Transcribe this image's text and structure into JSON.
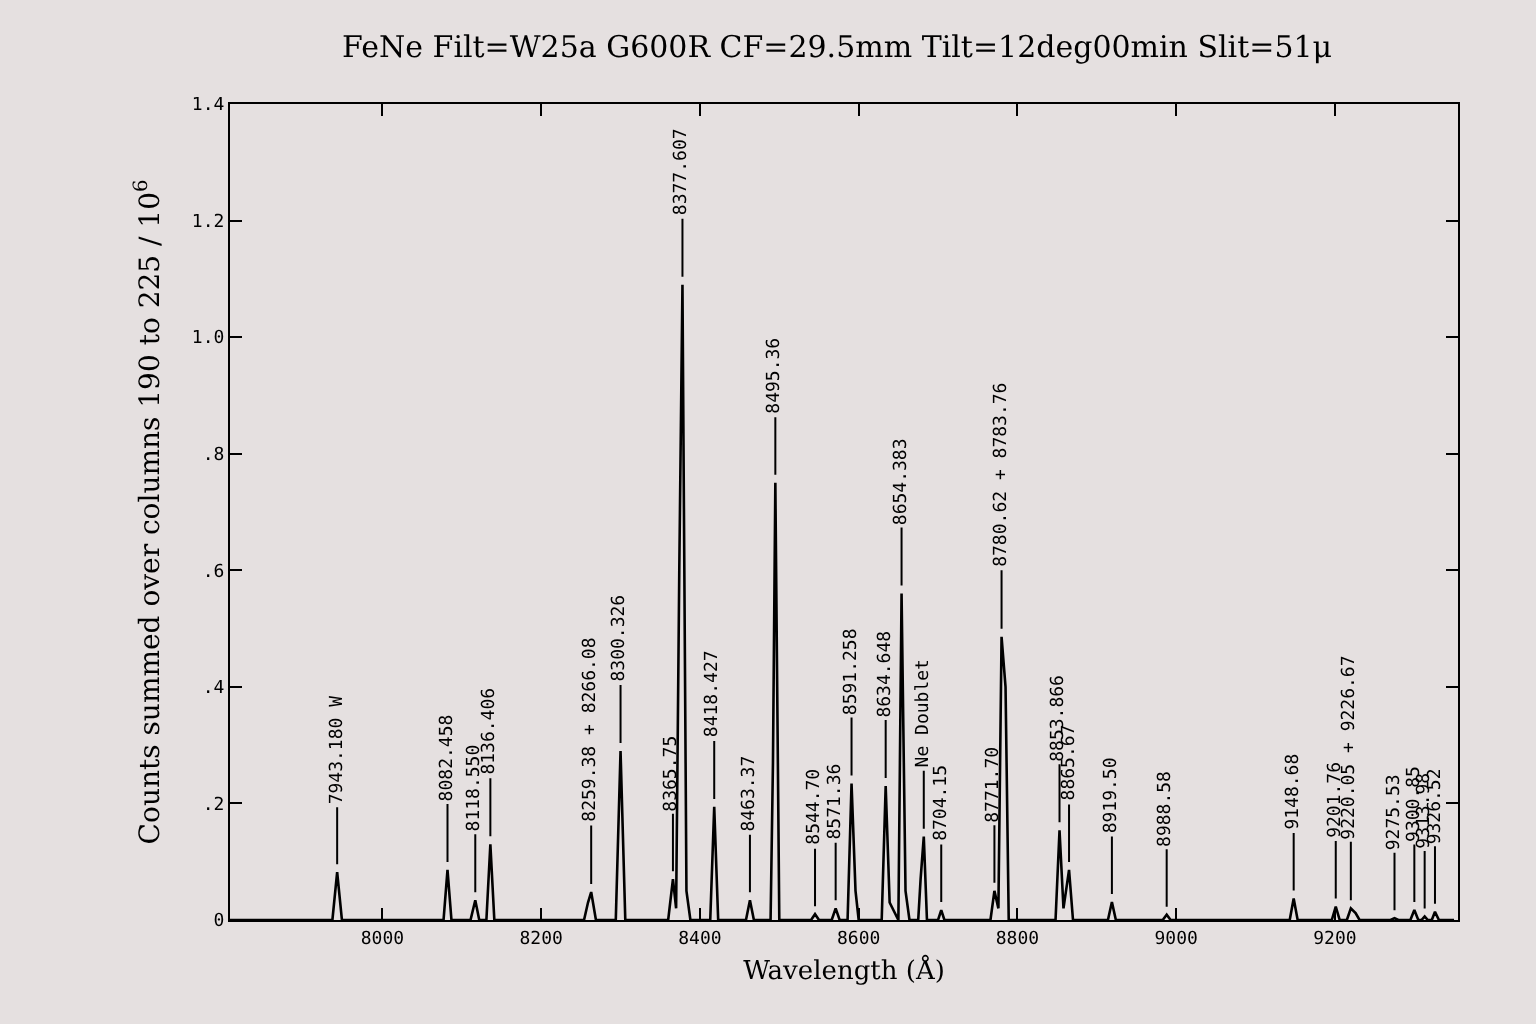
{
  "chart_data": {
    "type": "line",
    "title": "FeNe Filt=W25a G600R CF=29.5mm Tilt=12deg00min Slit=51μ",
    "xlabel": "Wavelength (Å)",
    "ylabel": "Counts summed over columns 190 to 225 / 10$^{6}$",
    "xlim": [
      7808,
      9355
    ],
    "xticks": [
      8000,
      8200,
      8400,
      8600,
      8800,
      9000,
      9200
    ],
    "ylim": [
      0,
      1.4
    ],
    "yticks": [
      0,
      {
        "value": 0.2,
        "label": ".2"
      },
      {
        "value": 0.4,
        "label": ".4"
      },
      {
        "value": 0.6,
        "label": ".6"
      },
      {
        "value": 0.8,
        "label": ".8"
      },
      {
        "value": 1.0,
        "label": "1.0"
      },
      {
        "value": 1.2,
        "label": "1.2"
      },
      {
        "value": 1.4,
        "label": "1.4"
      }
    ],
    "grid": false,
    "marker": "none",
    "line_style": "solid",
    "series": [
      {
        "color": "#000000",
        "x": [
          7808,
          7937,
          7943,
          7949,
          8077,
          8082,
          8087,
          8111,
          8117,
          8122,
          8131,
          8136,
          8141,
          8254,
          8259,
          8263,
          8269,
          8294,
          8300,
          8306,
          8360,
          8366,
          8370,
          8374,
          8378,
          8383,
          8388,
          8413,
          8418,
          8423,
          8458,
          8463,
          8468,
          8489,
          8492,
          8495,
          8500,
          8540,
          8545,
          8550,
          8566,
          8571,
          8576,
          8586,
          8591,
          8596,
          8600,
          8629,
          8634,
          8639,
          8650,
          8654,
          8659,
          8664,
          8675,
          8678,
          8682,
          8686,
          8700,
          8704,
          8708,
          8766,
          8771,
          8776,
          8780,
          8785,
          8789,
          8848,
          8853,
          8858,
          8865,
          8870,
          8914,
          8919,
          8924,
          8983,
          8988,
          8993,
          9143,
          9148,
          9153,
          9196,
          9201,
          9206,
          9215,
          9220,
          9226,
          9231,
          9270,
          9275,
          9280,
          9295,
          9300,
          9305,
          9309,
          9313,
          9317,
          9322,
          9326,
          9331,
          9350
        ],
        "values": [
          0,
          0,
          0.082,
          0,
          0,
          0.086,
          0,
          0,
          0.034,
          0,
          0,
          0.13,
          0,
          0,
          0.03,
          0.048,
          0,
          0,
          0.29,
          0,
          0,
          0.07,
          0.02,
          0.6,
          1.09,
          0.05,
          0,
          0,
          0.194,
          0,
          0,
          0.034,
          0,
          0,
          0.27,
          0.75,
          0,
          0,
          0.01,
          0,
          0,
          0.02,
          0,
          0,
          0.234,
          0.05,
          0,
          0,
          0.23,
          0.03,
          0,
          0.56,
          0.05,
          0,
          0,
          0.07,
          0.143,
          0,
          0,
          0.017,
          0,
          0,
          0.05,
          0.02,
          0.486,
          0.4,
          0,
          0,
          0.154,
          0.02,
          0.086,
          0,
          0,
          0.031,
          0,
          0,
          0.009,
          0,
          0,
          0.037,
          0,
          0,
          0.023,
          0,
          0,
          0.02,
          0.012,
          0,
          0,
          0.003,
          0,
          0,
          0.017,
          0,
          0,
          0.006,
          0,
          0,
          0.014,
          0,
          0
        ]
      }
    ],
    "annotations": [
      {
        "text": "7943.180 W",
        "x": 7943,
        "y": 0.082
      },
      {
        "text": "8082.458",
        "x": 8082,
        "y": 0.086
      },
      {
        "text": "8118.550",
        "x": 8117,
        "y": 0.034
      },
      {
        "text": "8136.406",
        "x": 8136,
        "y": 0.13
      },
      {
        "text": "8259.38 + 8266.08",
        "x": 8263,
        "y": 0.048
      },
      {
        "text": "8300.326",
        "x": 8300,
        "y": 0.29
      },
      {
        "text": "8365.75",
        "x": 8366,
        "y": 0.07
      },
      {
        "text": "8377.607",
        "x": 8378,
        "y": 1.09
      },
      {
        "text": "8418.427",
        "x": 8418,
        "y": 0.194
      },
      {
        "text": "8463.37",
        "x": 8463,
        "y": 0.034
      },
      {
        "text": "8495.36",
        "x": 8495,
        "y": 0.75
      },
      {
        "text": "8544.70",
        "x": 8545,
        "y": 0.01
      },
      {
        "text": "8571.36",
        "x": 8571,
        "y": 0.02
      },
      {
        "text": "8591.258",
        "x": 8591,
        "y": 0.234
      },
      {
        "text": "8634.648",
        "x": 8634,
        "y": 0.23
      },
      {
        "text": "8654.383",
        "x": 8654,
        "y": 0.56
      },
      {
        "text": "Ne Doublet",
        "x": 8682,
        "y": 0.143
      },
      {
        "text": "8704.15",
        "x": 8704,
        "y": 0.017
      },
      {
        "text": "8771.70",
        "x": 8771,
        "y": 0.05
      },
      {
        "text": "8780.62 + 8783.76",
        "x": 8780,
        "y": 0.486
      },
      {
        "text": "8853.866",
        "x": 8853,
        "y": 0.154
      },
      {
        "text": "8865.67",
        "x": 8865,
        "y": 0.086
      },
      {
        "text": "8919.50",
        "x": 8919,
        "y": 0.031
      },
      {
        "text": "8988.58",
        "x": 8988,
        "y": 0.009
      },
      {
        "text": "9148.68",
        "x": 9148,
        "y": 0.037
      },
      {
        "text": "9201.76",
        "x": 9201,
        "y": 0.023
      },
      {
        "text": "9220.05 + 9226.67",
        "x": 9220,
        "y": 0.02
      },
      {
        "text": "9275.53",
        "x": 9275,
        "y": 0.003
      },
      {
        "text": "9300.85",
        "x": 9300,
        "y": 0.017
      },
      {
        "text": "9313.98",
        "x": 9313,
        "y": 0.006
      },
      {
        "text": "9326.52",
        "x": 9326,
        "y": 0.014
      }
    ]
  }
}
